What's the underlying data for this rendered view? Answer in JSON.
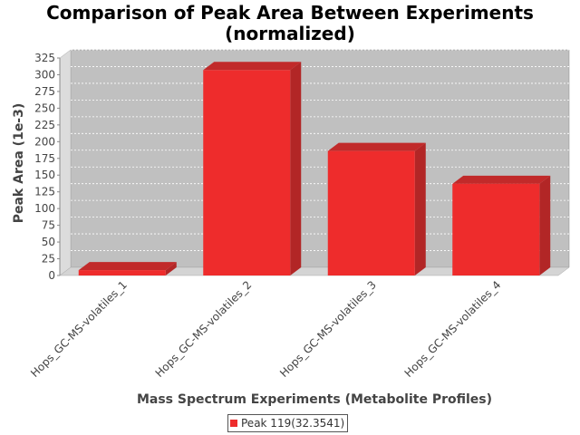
{
  "chart_data": {
    "type": "bar",
    "title_lines": [
      "Comparison of Peak Area Between Experiments",
      "(normalized)"
    ],
    "xlabel": "Mass Spectrum Experiments (Metabolite Profiles)",
    "ylabel": "Peak Area (1e-3)",
    "categories": [
      "Hops_GC-MS-volatiles_1",
      "Hops_GC-MS-volatiles_2",
      "Hops_GC-MS-volatiles_3",
      "Hops_GC-MS-volatiles_4"
    ],
    "series": [
      {
        "name": "Peak 119(32.3541)",
        "values": [
          8,
          307,
          186,
          137
        ],
        "color": "#ee2c2c"
      }
    ],
    "ylim": [
      0,
      325
    ],
    "yticks": [
      0,
      25,
      50,
      75,
      100,
      125,
      150,
      175,
      200,
      225,
      250,
      275,
      300,
      325
    ],
    "grid": true,
    "legend_position": "bottom-center",
    "style": "3d-bar",
    "plot_background": "#c0c0c0"
  }
}
